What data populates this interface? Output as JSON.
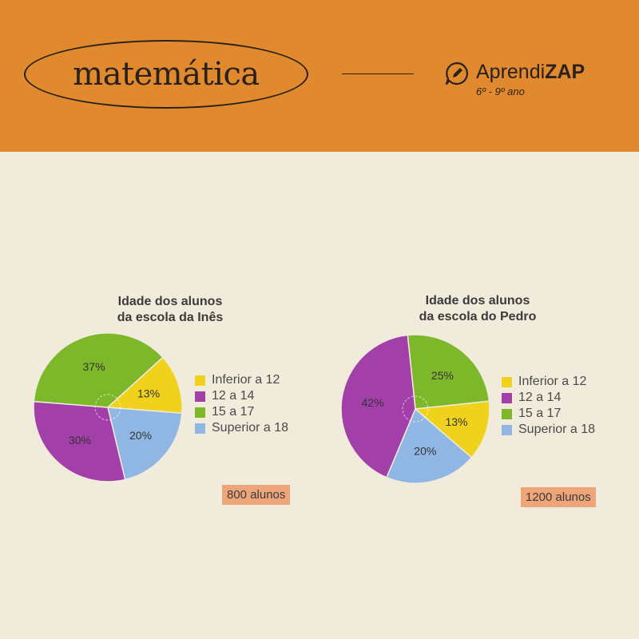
{
  "header": {
    "subject": "matemática",
    "brand_prefix": "Aprendi",
    "brand_suffix": "ZAP",
    "grade": "6º - 9º ano",
    "icon": "pencil-chat-icon"
  },
  "colors": {
    "header_bg": "#e0892f",
    "page_bg": "#f1ebdc",
    "inferior_12": "#f0d21c",
    "12_a_14": "#a33fa8",
    "15_a_17": "#7db82a",
    "superior_18": "#90b6e3",
    "badge": "#eea57a"
  },
  "legend": [
    "Inferior a 12",
    "12 a 14",
    "15 a 17",
    "Superior a 18"
  ],
  "chart_data": [
    {
      "type": "pie",
      "title": [
        "Idade dos alunos",
        "da escola da Inês"
      ],
      "categories": [
        "Inferior a 12",
        "12 a 14",
        "15 a 17",
        "Superior a 18"
      ],
      "values": [
        13,
        30,
        37,
        20
      ],
      "labels": [
        "13%",
        "30%",
        "37%",
        "20%"
      ],
      "total": "800 alunos",
      "legend_position": "right"
    },
    {
      "type": "pie",
      "title": [
        "Idade dos alunos",
        "da escola do Pedro"
      ],
      "categories": [
        "Inferior a 12",
        "12 a 14",
        "15 a 17",
        "Superior a 18"
      ],
      "values": [
        13,
        42,
        25,
        20
      ],
      "labels": [
        "13%",
        "42%",
        "25%",
        "20%"
      ],
      "total": "1200 alunos",
      "legend_position": "right"
    }
  ]
}
